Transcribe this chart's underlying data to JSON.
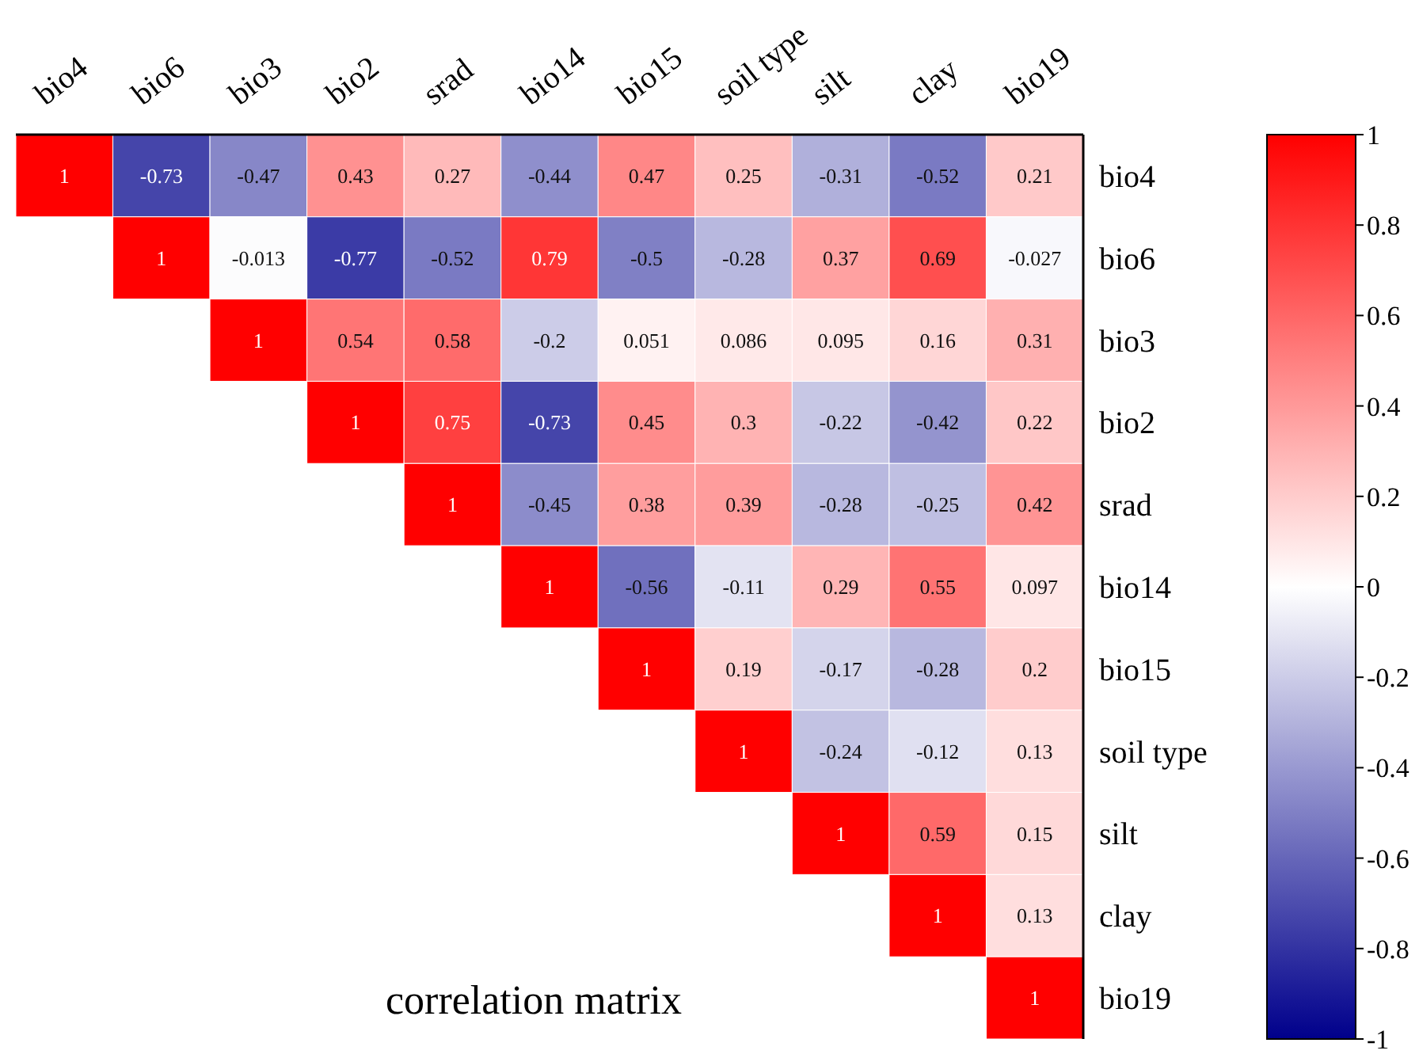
{
  "chart_data": {
    "type": "heatmap",
    "title": "correlation matrix",
    "categories": [
      "bio4",
      "bio6",
      "bio3",
      "bio2",
      "srad",
      "bio14",
      "bio15",
      "soil type",
      "silt",
      "clay",
      "bio19"
    ],
    "y_categories": [
      "bio4",
      "bio6",
      "bio3",
      "bio2",
      "srad",
      "bio14",
      "bio15",
      "soil type",
      "silt",
      "clay",
      "bio19"
    ],
    "cells": [
      [
        1,
        -0.73,
        -0.47,
        0.43,
        0.27,
        -0.44,
        0.47,
        0.25,
        -0.31,
        -0.52,
        0.21
      ],
      [
        null,
        1,
        -0.013,
        -0.77,
        -0.52,
        0.79,
        -0.5,
        -0.28,
        0.37,
        0.69,
        -0.027
      ],
      [
        null,
        null,
        1,
        0.54,
        0.58,
        -0.2,
        0.051,
        0.086,
        0.095,
        0.16,
        0.31
      ],
      [
        null,
        null,
        null,
        1,
        0.75,
        -0.73,
        0.45,
        0.3,
        -0.22,
        -0.42,
        0.22
      ],
      [
        null,
        null,
        null,
        null,
        1,
        -0.45,
        0.38,
        0.39,
        -0.28,
        -0.25,
        0.42
      ],
      [
        null,
        null,
        null,
        null,
        null,
        1,
        -0.56,
        -0.11,
        0.29,
        0.55,
        0.097
      ],
      [
        null,
        null,
        null,
        null,
        null,
        null,
        1,
        0.19,
        -0.17,
        -0.28,
        0.2
      ],
      [
        null,
        null,
        null,
        null,
        null,
        null,
        null,
        1,
        -0.24,
        -0.12,
        0.13
      ],
      [
        null,
        null,
        null,
        null,
        null,
        null,
        null,
        null,
        1,
        0.59,
        0.15
      ],
      [
        null,
        null,
        null,
        null,
        null,
        null,
        null,
        null,
        null,
        1,
        0.13
      ],
      [
        null,
        null,
        null,
        null,
        null,
        null,
        null,
        null,
        null,
        null,
        1
      ]
    ],
    "clim": [
      -1,
      1
    ],
    "cticks": [
      1,
      0.8,
      0.6,
      0.4,
      0.2,
      0,
      -0.2,
      -0.4,
      -0.6,
      -0.8,
      -1
    ],
    "data_labels": true
  }
}
